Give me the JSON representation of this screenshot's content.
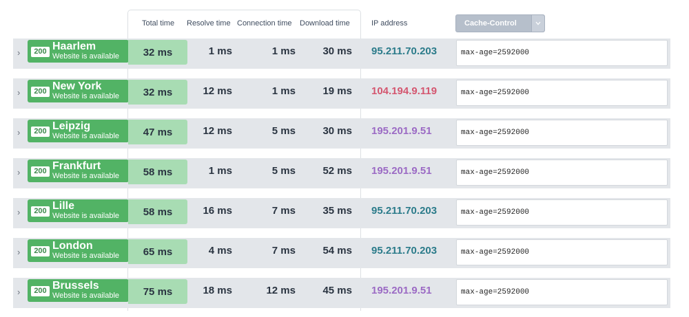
{
  "headers": {
    "total": "Total time",
    "resolve": "Resolve time",
    "connection": "Connection time",
    "download": "Download time",
    "ip": "IP address",
    "cache": "Cache-Control"
  },
  "colors": {
    "ok_green": "#52b365",
    "total_bg": "#a8dcb3",
    "ip_teal": "#2b7b8a",
    "ip_red": "#d4566f",
    "ip_purple": "#9b6ac4"
  },
  "rows": [
    {
      "status": "200",
      "city": "Haarlem",
      "availability": "Website is available",
      "total": "32 ms",
      "resolve": "1 ms",
      "connection": "1 ms",
      "download": "30 ms",
      "ip": "95.211.70.203",
      "ip_color": "#2b7b8a",
      "cache": "max-age=2592000"
    },
    {
      "status": "200",
      "city": "New York",
      "availability": "Website is available",
      "total": "32 ms",
      "resolve": "12 ms",
      "connection": "1 ms",
      "download": "19 ms",
      "ip": "104.194.9.119",
      "ip_color": "#d4566f",
      "cache": "max-age=2592000"
    },
    {
      "status": "200",
      "city": "Leipzig",
      "availability": "Website is available",
      "total": "47 ms",
      "resolve": "12 ms",
      "connection": "5 ms",
      "download": "30 ms",
      "ip": "195.201.9.51",
      "ip_color": "#9b6ac4",
      "cache": "max-age=2592000"
    },
    {
      "status": "200",
      "city": "Frankfurt",
      "availability": "Website is available",
      "total": "58 ms",
      "resolve": "1 ms",
      "connection": "5 ms",
      "download": "52 ms",
      "ip": "195.201.9.51",
      "ip_color": "#9b6ac4",
      "cache": "max-age=2592000"
    },
    {
      "status": "200",
      "city": "Lille",
      "availability": "Website is available",
      "total": "58 ms",
      "resolve": "16 ms",
      "connection": "7 ms",
      "download": "35 ms",
      "ip": "95.211.70.203",
      "ip_color": "#2b7b8a",
      "cache": "max-age=2592000"
    },
    {
      "status": "200",
      "city": "London",
      "availability": "Website is available",
      "total": "65 ms",
      "resolve": "4 ms",
      "connection": "7 ms",
      "download": "54 ms",
      "ip": "95.211.70.203",
      "ip_color": "#2b7b8a",
      "cache": "max-age=2592000"
    },
    {
      "status": "200",
      "city": "Brussels",
      "availability": "Website is available",
      "total": "75 ms",
      "resolve": "18 ms",
      "connection": "12 ms",
      "download": "45 ms",
      "ip": "195.201.9.51",
      "ip_color": "#9b6ac4",
      "cache": "max-age=2592000"
    }
  ]
}
